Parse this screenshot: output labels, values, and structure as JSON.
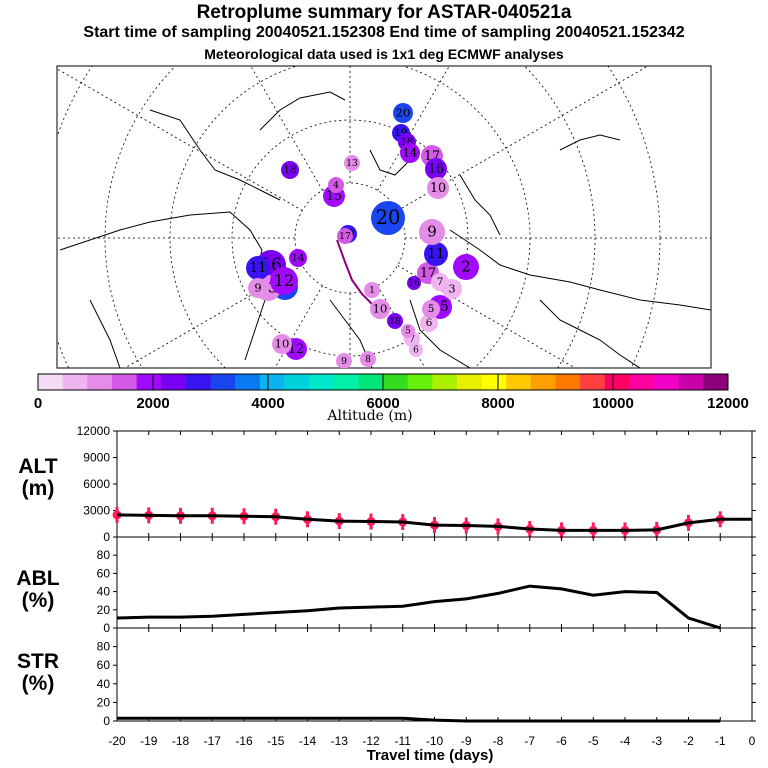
{
  "header": {
    "title": "Retroplume summary for ASTAR-040521a",
    "sampling": "Start time of sampling 20040521.152308     End time of sampling 20040521.152342",
    "met": "Meteorological data used is 1x1 deg ECMWF analyses"
  },
  "map": {
    "description_colors": {
      "land": "#000000",
      "grid": "#000000"
    },
    "clusters": [
      {
        "label": "20",
        "alt": 3300
      },
      {
        "label": "19",
        "alt": 3100
      },
      {
        "label": "18",
        "alt": 3000
      },
      {
        "label": "17",
        "alt": 2900
      },
      {
        "label": "16",
        "alt": 2700
      },
      {
        "label": "15",
        "alt": 2400
      },
      {
        "label": "14",
        "alt": 2300
      },
      {
        "label": "13",
        "alt": 2100
      },
      {
        "label": "12",
        "alt": 2050
      },
      {
        "label": "11",
        "alt": 1900
      },
      {
        "label": "10",
        "alt": 1800
      },
      {
        "label": "9",
        "alt": 1700
      },
      {
        "label": "8",
        "alt": 1500
      },
      {
        "label": "7",
        "alt": 1400
      },
      {
        "label": "6",
        "alt": 1300
      },
      {
        "label": "5",
        "alt": 1200
      },
      {
        "label": "4",
        "alt": 1100
      },
      {
        "label": "3",
        "alt": 1000
      },
      {
        "label": "2",
        "alt": 900
      },
      {
        "label": "1",
        "alt": 700
      }
    ]
  },
  "colorbar": {
    "colors": [
      "#f5dcf5",
      "#f0b4f0",
      "#e48ce8",
      "#d25ae6",
      "#a00aff",
      "#7a00f5",
      "#3a14f0",
      "#1a46f0",
      "#0a78f0",
      "#0ab4f0",
      "#00d2dc",
      "#00e6c8",
      "#00f0aa",
      "#00e678",
      "#32dc1e",
      "#64f00a",
      "#aaf000",
      "#e6f000",
      "#ffff00",
      "#ffc800",
      "#ffa000",
      "#ff7800",
      "#ff4040",
      "#ff0064",
      "#ff00a0",
      "#f000c8",
      "#c800aa",
      "#8c0078"
    ],
    "ticks": [
      "0",
      "2000",
      "4000",
      "6000",
      "8000",
      "10000",
      "12000"
    ],
    "label": "Altitude (m)"
  },
  "labels": {
    "alt_panel": "ALT\n(m)",
    "abl_panel": "ABL\n(%)",
    "str_panel": "STR\n(%)",
    "xlabel": "Travel time (days)"
  },
  "chart_data": [
    {
      "type": "line",
      "title": "ALT",
      "ylabel": "ALT (m)",
      "xlabel": "Travel time (days)",
      "xlim": [
        -20,
        0
      ],
      "ylim": [
        0,
        12000
      ],
      "yticks": [
        0,
        3000,
        6000,
        9000,
        12000
      ],
      "xticks": [
        -20,
        -19,
        -18,
        -17,
        -16,
        -15,
        -14,
        -13,
        -12,
        -11,
        -10,
        -9,
        -8,
        -7,
        -6,
        -5,
        -4,
        -3,
        -2,
        -1,
        0
      ],
      "x": [
        -20,
        -19,
        -18,
        -17,
        -16,
        -15,
        -14,
        -13,
        -12,
        -11,
        -10,
        -9,
        -8,
        -7,
        -6,
        -5,
        -4,
        -3,
        -2,
        -1,
        0
      ],
      "values": [
        2500,
        2450,
        2400,
        2400,
        2350,
        2300,
        2000,
        1800,
        1750,
        1700,
        1350,
        1300,
        1200,
        900,
        750,
        750,
        750,
        800,
        1600,
        2000,
        2000
      ],
      "markers_x": [
        -20,
        -19,
        -18,
        -17,
        -16,
        -15,
        -14,
        -13,
        -12,
        -11,
        -10,
        -9,
        -8,
        -7,
        -6,
        -5,
        -4,
        -3,
        -2,
        -1
      ],
      "marker_color": "#ff1a5a"
    },
    {
      "type": "line",
      "title": "ABL",
      "ylabel": "ABL (%)",
      "xlim": [
        -20,
        0
      ],
      "ylim": [
        0,
        100
      ],
      "yticks": [
        0,
        20,
        40,
        60,
        80
      ],
      "x": [
        -20,
        -19,
        -18,
        -17,
        -16,
        -15,
        -14,
        -13,
        -12,
        -11,
        -10,
        -9,
        -8,
        -7,
        -6,
        -5,
        -4,
        -3,
        -2,
        -1
      ],
      "values": [
        11,
        12,
        12,
        13,
        15,
        17,
        19,
        22,
        23,
        24,
        29,
        32,
        38,
        46,
        43,
        36,
        40,
        39,
        11,
        0
      ]
    },
    {
      "type": "line",
      "title": "STR",
      "ylabel": "STR (%)",
      "xlim": [
        -20,
        0
      ],
      "ylim": [
        0,
        100
      ],
      "yticks": [
        0,
        20,
        40,
        60,
        80
      ],
      "x": [
        -20,
        -19,
        -18,
        -17,
        -16,
        -15,
        -14,
        -13,
        -12,
        -11,
        -10,
        -9,
        -8,
        -7,
        -6,
        -5,
        -4,
        -3,
        -2,
        -1
      ],
      "values": [
        3,
        3,
        3,
        3,
        3,
        3,
        3,
        3,
        3,
        3,
        1,
        0,
        0,
        0,
        0,
        0,
        0,
        0,
        0,
        0
      ]
    }
  ]
}
